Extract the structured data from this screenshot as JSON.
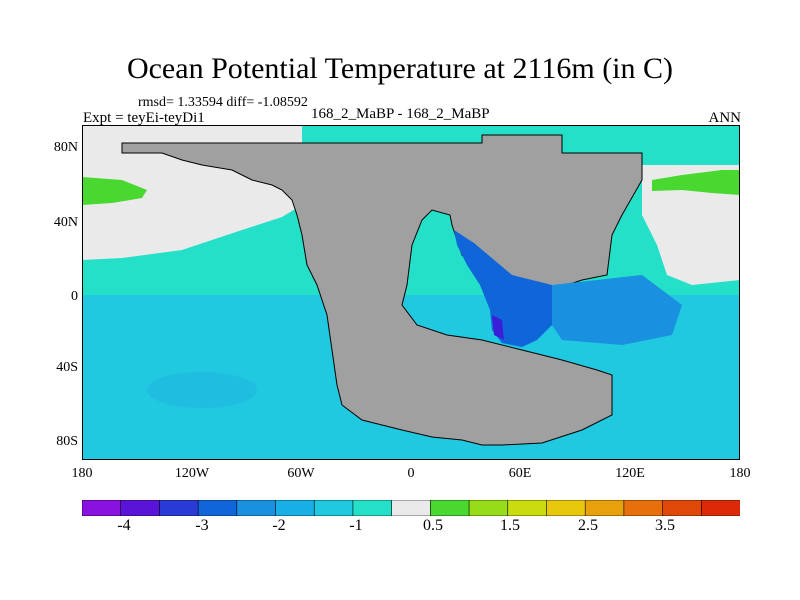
{
  "title": "Ocean Potential Temperature at 2116m (in C)",
  "stats": "rmsd= 1.33594 diff= -1.08592",
  "experiment": "Expt = teyEi-teyDi1",
  "case_label": "168_2_MaBP - 168_2_MaBP",
  "season": "ANN",
  "lat_labels": [
    "80N",
    "40N",
    "0",
    "40S",
    "80S"
  ],
  "lon_labels": [
    "180",
    "120W",
    "60W",
    "0",
    "60E",
    "120E",
    "180"
  ],
  "colorbar": {
    "colors": [
      "#8a12e0",
      "#5a14d8",
      "#2a3ad6",
      "#1066d8",
      "#1a90e0",
      "#18aee6",
      "#20c8e0",
      "#24e0c8",
      "#eaeaea",
      "#48d830",
      "#96dc18",
      "#c8dc10",
      "#e8c80c",
      "#e8a00c",
      "#e8700c",
      "#e04808",
      "#dc2a08"
    ],
    "labels": [
      "-4",
      "-3",
      "-2",
      "-1",
      "0.5",
      "1.5",
      "2.5",
      "3.5"
    ]
  },
  "colors": {
    "land": "#a0a0a0",
    "ocean_main": "#24e0c8",
    "ocean_deep": "#20c8e0",
    "cold_core": "#1066d8",
    "near_zero": "#eaeaea",
    "warm": "#48d830"
  }
}
